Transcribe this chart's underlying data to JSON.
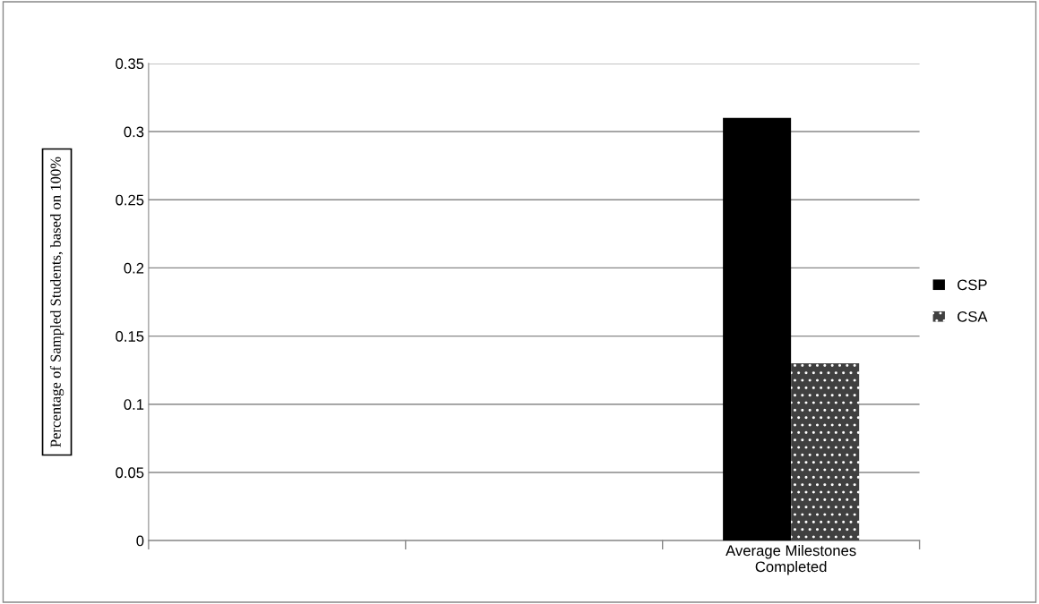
{
  "chart_data": {
    "type": "bar",
    "ylabel": "Percentage of Sampled Students, based on 100%",
    "categories": [
      null,
      null,
      "Average Milestones\nCompleted"
    ],
    "series": [
      {
        "name": "CSP",
        "color": "#000000",
        "values": [
          null,
          null,
          0.31
        ]
      },
      {
        "name": "CSA",
        "color": "#404040",
        "values": [
          null,
          null,
          0.13
        ]
      }
    ],
    "ylim": [
      0,
      0.35
    ],
    "yticks": [
      {
        "value": 0,
        "label": "0"
      },
      0.05,
      0.1,
      0.15,
      0.2,
      0.25,
      0.3,
      0.35
    ],
    "grid": "y",
    "legend": "right"
  }
}
